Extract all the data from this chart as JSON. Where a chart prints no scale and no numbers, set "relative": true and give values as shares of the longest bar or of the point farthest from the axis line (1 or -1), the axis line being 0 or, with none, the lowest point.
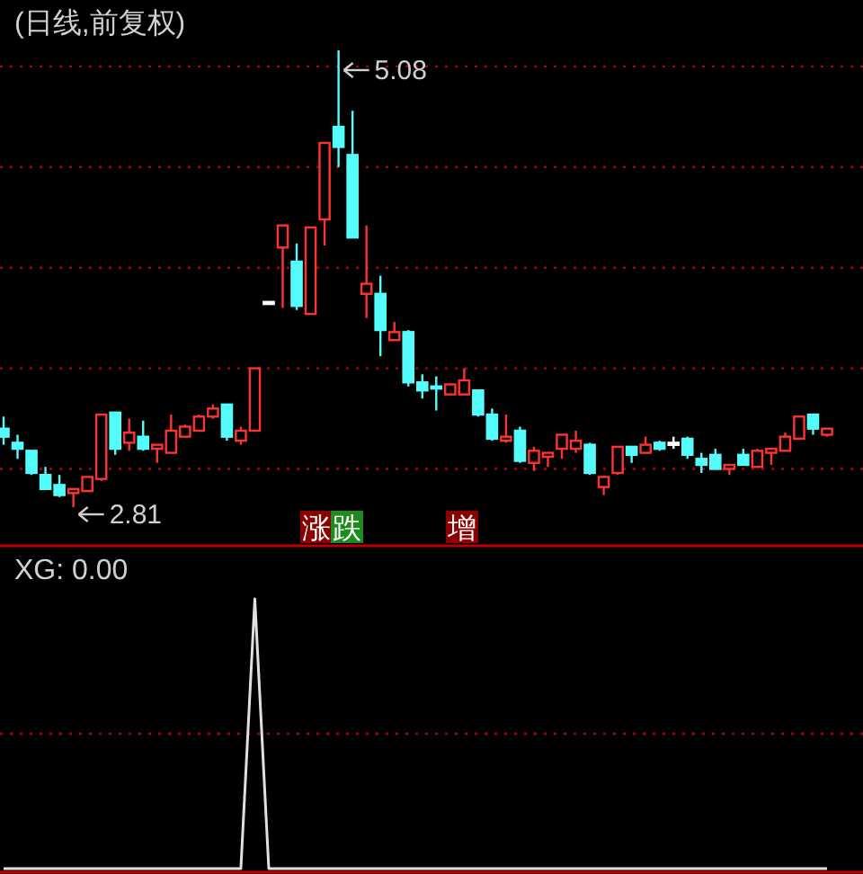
{
  "chart_data": [
    {
      "type": "candlestick",
      "title": "(日线,前复权)",
      "categories": [
        null,
        null,
        null,
        null,
        null,
        null,
        null,
        null,
        null,
        null,
        null,
        null,
        null,
        null,
        null,
        null,
        null,
        null,
        null,
        null,
        null,
        null,
        null,
        null,
        null,
        null,
        null,
        null,
        null,
        null,
        null,
        null,
        null,
        null,
        null,
        null,
        null,
        null,
        null,
        null,
        null,
        null,
        null,
        null,
        null,
        null,
        null,
        null,
        null,
        null,
        null,
        null,
        null,
        null,
        null,
        null,
        null,
        null,
        null,
        null
      ],
      "ohlc": [
        [
          3.2,
          3.26,
          3.12,
          3.16
        ],
        [
          3.13,
          3.17,
          3.05,
          3.1
        ],
        [
          3.09,
          3.09,
          2.97,
          2.98
        ],
        [
          2.97,
          3.01,
          2.9,
          2.9
        ],
        [
          2.92,
          2.97,
          2.86,
          2.87
        ],
        [
          2.88,
          2.9,
          2.81,
          2.9
        ],
        [
          2.89,
          2.96,
          2.89,
          2.96
        ],
        [
          2.95,
          3.27,
          2.94,
          3.27
        ],
        [
          3.28,
          3.28,
          3.07,
          3.1
        ],
        [
          3.13,
          3.25,
          3.09,
          3.18
        ],
        [
          3.16,
          3.24,
          3.09,
          3.1
        ],
        [
          3.1,
          3.12,
          3.03,
          3.12
        ],
        [
          3.08,
          3.27,
          3.08,
          3.19
        ],
        [
          3.16,
          3.22,
          3.16,
          3.21
        ],
        [
          3.19,
          3.27,
          3.19,
          3.26
        ],
        [
          3.26,
          3.32,
          3.25,
          3.3
        ],
        [
          3.32,
          3.32,
          3.14,
          3.16
        ],
        [
          3.14,
          3.21,
          3.12,
          3.19
        ],
        [
          3.19,
          3.5,
          3.19,
          3.5
        ],
        [
          3.83,
          3.83,
          3.83,
          3.83
        ],
        [
          4.1,
          4.21,
          3.8,
          4.21
        ],
        [
          4.03,
          4.12,
          3.79,
          3.81
        ],
        [
          3.77,
          4.2,
          3.77,
          4.2
        ],
        [
          4.24,
          4.62,
          4.11,
          4.62
        ],
        [
          4.7,
          5.08,
          4.5,
          4.6
        ],
        [
          4.56,
          4.78,
          4.15,
          4.15
        ],
        [
          3.87,
          4.21,
          3.75,
          3.92
        ],
        [
          3.87,
          3.96,
          3.56,
          3.69
        ],
        [
          3.64,
          3.73,
          3.64,
          3.68
        ],
        [
          3.68,
          3.69,
          3.41,
          3.43
        ],
        [
          3.43,
          3.47,
          3.35,
          3.39
        ],
        [
          3.41,
          3.46,
          3.29,
          3.4
        ],
        [
          3.37,
          3.42,
          3.37,
          3.42
        ],
        [
          3.37,
          3.5,
          3.37,
          3.44
        ],
        [
          3.39,
          3.39,
          3.26,
          3.27
        ],
        [
          3.27,
          3.3,
          3.14,
          3.15
        ],
        [
          3.14,
          3.27,
          3.13,
          3.16
        ],
        [
          3.19,
          3.21,
          3.03,
          3.04
        ],
        [
          3.03,
          3.11,
          2.99,
          3.09
        ],
        [
          3.06,
          3.08,
          3.01,
          3.08
        ],
        [
          3.1,
          3.17,
          3.05,
          3.17
        ],
        [
          3.1,
          3.19,
          3.08,
          3.14
        ],
        [
          3.12,
          3.13,
          2.97,
          2.98
        ],
        [
          2.91,
          2.96,
          2.87,
          2.96
        ],
        [
          2.98,
          3.11,
          2.97,
          3.11
        ],
        [
          3.11,
          3.11,
          3.03,
          3.07
        ],
        [
          3.08,
          3.16,
          3.08,
          3.12
        ],
        [
          3.13,
          3.14,
          3.09,
          3.1
        ],
        [
          3.13,
          3.16,
          3.1,
          3.13
        ],
        [
          3.15,
          3.16,
          3.05,
          3.07
        ],
        [
          3.05,
          3.08,
          2.98,
          3.02
        ],
        [
          3.07,
          3.1,
          3.0,
          3.0
        ],
        [
          3.0,
          3.02,
          2.97,
          3.02
        ],
        [
          3.07,
          3.1,
          3.02,
          3.02
        ],
        [
          3.01,
          3.1,
          3.01,
          3.09
        ],
        [
          3.08,
          3.1,
          3.02,
          3.1
        ],
        [
          3.09,
          3.18,
          3.09,
          3.16
        ],
        [
          3.15,
          3.26,
          3.15,
          3.26
        ],
        [
          3.27,
          3.27,
          3.17,
          3.2
        ],
        [
          3.17,
          3.2,
          3.16,
          3.2
        ]
      ],
      "colors": [
        "#54fcfc",
        "#54fcfc",
        "#54fcfc",
        "#54fcfc",
        "#54fcfc",
        "#ff3232",
        "#ff3232",
        "#ff3232",
        "#54fcfc",
        "#ff3232",
        "#54fcfc",
        "#ff3232",
        "#ff3232",
        "#ff3232",
        "#ff3232",
        "#ff3232",
        "#54fcfc",
        "#ff3232",
        "#ff3232",
        "#ffffff",
        "#ff3232",
        "#54fcfc",
        "#ff3232",
        "#ff3232",
        "#54fcfc",
        "#54fcfc",
        "#ff3232",
        "#54fcfc",
        "#ff3232",
        "#54fcfc",
        "#54fcfc",
        "#54fcfc",
        "#ff3232",
        "#ff3232",
        "#54fcfc",
        "#54fcfc",
        "#ff3232",
        "#54fcfc",
        "#ff3232",
        "#ff3232",
        "#ff3232",
        "#ff3232",
        "#54fcfc",
        "#ff3232",
        "#ff3232",
        "#54fcfc",
        "#ff3232",
        "#54fcfc",
        "#ffffff",
        "#54fcfc",
        "#54fcfc",
        "#54fcfc",
        "#ff3232",
        "#54fcfc",
        "#ff3232",
        "#ff3232",
        "#ff3232",
        "#ff3232",
        "#54fcfc",
        "#ff3232"
      ],
      "yticks": [
        {
          "value": 3.0,
          "label": null
        },
        {
          "value": 3.5,
          "label": null
        },
        {
          "value": 4.0,
          "label": null
        },
        {
          "value": 4.5,
          "label": null
        },
        {
          "value": 5.0,
          "label": null
        }
      ],
      "grid": "y",
      "annotations": [
        "5.08",
        "2.81",
        "涨",
        "跌",
        "增"
      ]
    },
    {
      "type": "line",
      "title": "XG: 0.00",
      "relative": true,
      "categories": [
        null,
        null,
        null,
        null,
        null,
        null,
        null,
        null,
        null,
        null,
        null,
        null,
        null,
        null,
        null,
        null,
        null,
        null,
        null,
        null,
        null,
        null,
        null,
        null,
        null,
        null,
        null,
        null,
        null,
        null,
        null,
        null,
        null,
        null,
        null,
        null,
        null,
        null,
        null,
        null,
        null,
        null,
        null,
        null,
        null,
        null,
        null,
        null,
        null,
        null,
        null,
        null,
        null,
        null,
        null,
        null,
        null,
        null,
        null,
        null
      ],
      "series": [
        {
          "color": "#e0e0e0",
          "values": [
            0,
            0,
            0,
            0,
            0,
            0,
            0,
            0,
            0,
            0,
            0,
            0,
            0,
            0,
            0,
            0,
            0,
            0,
            1,
            0,
            0,
            0,
            0,
            0,
            0,
            0,
            0,
            0,
            0,
            0,
            0,
            0,
            0,
            0,
            0,
            0,
            0,
            0,
            0,
            0,
            0,
            0,
            0,
            0,
            0,
            0,
            0,
            0,
            0,
            0,
            0,
            0,
            0,
            0,
            0,
            0,
            0,
            0,
            0,
            0
          ]
        }
      ],
      "ref_lines": [
        {
          "axis": "y",
          "value": 0.5,
          "color": "#b00000",
          "line_style": "dotted"
        }
      ]
    }
  ]
}
